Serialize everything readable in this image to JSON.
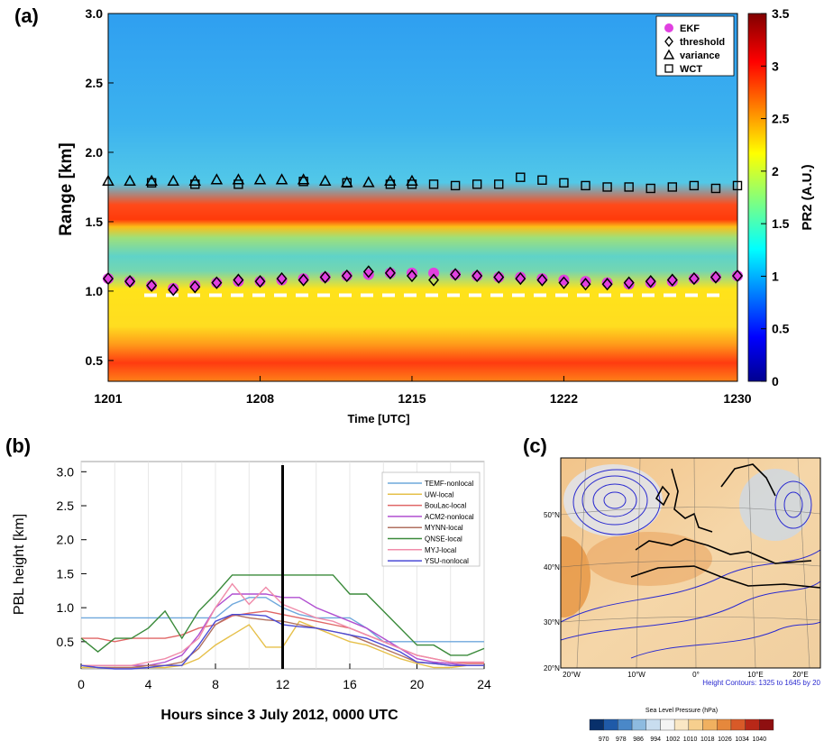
{
  "panel_a": {
    "label": "(a)",
    "colorbar_label": "PR2 (A.U.)",
    "colorbar_ticks": [
      "0",
      "0.5",
      "1",
      "1.5",
      "2",
      "2.5",
      "3",
      "3.5"
    ]
  },
  "panel_b": {
    "label": "(b)"
  },
  "panel_c": {
    "label": "(c)",
    "lat_labels": [
      "50°N",
      "40°N",
      "30°N",
      "20°N"
    ],
    "lon_labels": [
      "20°W",
      "10°W",
      "0°",
      "10°E",
      "20°E"
    ],
    "footer": "Height Contours: 1325 to 1645 by 20",
    "colorbar_title": "Sea Level Pressure  (hPa)",
    "colorbar_ticks": [
      "970",
      "978",
      "986",
      "994",
      "1002",
      "1010",
      "1018",
      "1026",
      "1034",
      "1040"
    ]
  },
  "chart_data": [
    {
      "type": "scatter",
      "title": "",
      "xlabel": "Time [UTC]",
      "ylabel": "Range [km]",
      "x_tick_labels": [
        "1201",
        "1208",
        "1215",
        "1222",
        "1230"
      ],
      "y_tick_labels": [
        "0.5",
        "1.0",
        "1.5",
        "2.0",
        "2.5",
        "3.0"
      ],
      "xlim": [
        1201,
        1230
      ],
      "ylim": [
        0.35,
        3.0
      ],
      "legend_position": "top-right",
      "background": "heatmap of PR2 (A.U.), range 0 to 3.5",
      "series": [
        {
          "name": "EKF",
          "x": [
            1201,
            1202,
            1203,
            1204,
            1205,
            1206,
            1207,
            1208,
            1209,
            1210,
            1211,
            1212,
            1213,
            1214,
            1215,
            1216,
            1217,
            1218,
            1219,
            1220,
            1221,
            1222,
            1223,
            1224,
            1225,
            1226,
            1227,
            1228,
            1229,
            1230
          ],
          "y": [
            1.09,
            1.07,
            1.04,
            1.02,
            1.04,
            1.06,
            1.07,
            1.07,
            1.08,
            1.09,
            1.1,
            1.11,
            1.12,
            1.13,
            1.13,
            1.13,
            1.12,
            1.11,
            1.1,
            1.1,
            1.09,
            1.08,
            1.07,
            1.06,
            1.05,
            1.06,
            1.07,
            1.09,
            1.1,
            1.11
          ]
        },
        {
          "name": "threshold",
          "x": [
            1201,
            1202,
            1203,
            1204,
            1205,
            1206,
            1207,
            1208,
            1209,
            1210,
            1211,
            1212,
            1213,
            1214,
            1215,
            1216,
            1217,
            1218,
            1219,
            1220,
            1221,
            1222,
            1223,
            1224,
            1225,
            1226,
            1227,
            1228,
            1229,
            1230
          ],
          "y": [
            1.09,
            1.07,
            1.04,
            1.01,
            1.03,
            1.06,
            1.08,
            1.07,
            1.09,
            1.08,
            1.1,
            1.11,
            1.14,
            1.13,
            1.11,
            1.08,
            1.12,
            1.11,
            1.1,
            1.09,
            1.08,
            1.06,
            1.05,
            1.05,
            1.06,
            1.07,
            1.08,
            1.09,
            1.1,
            1.11
          ]
        },
        {
          "name": "variance",
          "x": [
            1201,
            1202,
            1203,
            1204,
            1205,
            1206,
            1207,
            1208,
            1209,
            1210,
            1211,
            1212,
            1213,
            1214,
            1215
          ],
          "y": [
            1.79,
            1.79,
            1.79,
            1.79,
            1.79,
            1.8,
            1.8,
            1.8,
            1.8,
            1.8,
            1.79,
            1.78,
            1.78,
            1.79,
            1.79
          ]
        },
        {
          "name": "WCT",
          "x": [
            1203,
            1205,
            1207,
            1210,
            1212,
            1214,
            1215,
            1216,
            1217,
            1218,
            1219,
            1220,
            1221,
            1222,
            1223,
            1224,
            1225,
            1226,
            1227,
            1228,
            1229,
            1230
          ],
          "y": [
            1.78,
            1.77,
            1.77,
            1.79,
            1.78,
            1.77,
            1.77,
            1.77,
            1.76,
            1.77,
            1.77,
            1.82,
            1.8,
            1.78,
            1.76,
            1.75,
            1.75,
            1.74,
            1.75,
            1.76,
            1.74,
            1.76
          ]
        }
      ]
    },
    {
      "type": "line",
      "title": "",
      "xlabel": "Hours since 3 July 2012, 0000 UTC",
      "ylabel": "PBL height [km]",
      "x_tick_labels": [
        "0",
        "4",
        "8",
        "12",
        "16",
        "20",
        "24"
      ],
      "y_tick_labels": [
        "0.5",
        "1.0",
        "1.5",
        "2.0",
        "2.5",
        "3.0"
      ],
      "xlim": [
        0,
        24
      ],
      "ylim": [
        0.1,
        3.15
      ],
      "legend_position": "top-right",
      "vertical_line_x": 12,
      "x": [
        0,
        1,
        2,
        3,
        4,
        5,
        6,
        7,
        8,
        9,
        10,
        11,
        12,
        13,
        14,
        15,
        16,
        17,
        18,
        19,
        20,
        21,
        22,
        23,
        24
      ],
      "series": [
        {
          "name": "TEMF-nonlocal",
          "color": "#6fa8dc",
          "values": [
            0.85,
            0.85,
            0.85,
            0.85,
            0.85,
            0.85,
            0.85,
            0.85,
            0.85,
            1.05,
            1.15,
            1.15,
            1.0,
            0.9,
            0.85,
            0.85,
            0.85,
            0.7,
            0.5,
            0.5,
            0.5,
            0.5,
            0.5,
            0.5,
            0.5
          ]
        },
        {
          "name": "UW-local",
          "color": "#e6c04a",
          "values": [
            0.12,
            0.12,
            0.12,
            0.12,
            0.12,
            0.12,
            0.15,
            0.25,
            0.45,
            0.6,
            0.75,
            0.42,
            0.42,
            0.8,
            0.7,
            0.6,
            0.5,
            0.45,
            0.35,
            0.25,
            0.18,
            0.12,
            0.12,
            0.15,
            0.15
          ]
        },
        {
          "name": "BouLac-local",
          "color": "#e06666",
          "values": [
            0.55,
            0.55,
            0.5,
            0.55,
            0.55,
            0.55,
            0.6,
            0.7,
            0.75,
            0.88,
            0.92,
            0.95,
            0.9,
            0.85,
            0.8,
            0.75,
            0.7,
            0.6,
            0.5,
            0.4,
            0.3,
            0.25,
            0.2,
            0.18,
            0.18
          ]
        },
        {
          "name": "ACM2-nonlocal",
          "color": "#b04fd0",
          "values": [
            0.15,
            0.15,
            0.15,
            0.15,
            0.15,
            0.2,
            0.3,
            0.6,
            1.0,
            1.2,
            1.2,
            1.2,
            1.15,
            1.15,
            1.0,
            0.9,
            0.8,
            0.7,
            0.55,
            0.4,
            0.25,
            0.2,
            0.18,
            0.15,
            0.15
          ]
        },
        {
          "name": "MYNN-local",
          "color": "#b07060",
          "values": [
            0.15,
            0.12,
            0.12,
            0.12,
            0.15,
            0.15,
            0.2,
            0.4,
            0.75,
            0.9,
            0.85,
            0.82,
            0.8,
            0.75,
            0.7,
            0.65,
            0.6,
            0.5,
            0.4,
            0.3,
            0.2,
            0.18,
            0.15,
            0.15,
            0.15
          ]
        },
        {
          "name": "QNSE-local",
          "color": "#3a8a3a",
          "values": [
            0.55,
            0.35,
            0.55,
            0.55,
            0.7,
            0.95,
            0.55,
            0.95,
            1.2,
            1.48,
            1.48,
            1.48,
            1.48,
            1.48,
            1.48,
            1.48,
            1.2,
            1.2,
            0.95,
            0.7,
            0.45,
            0.45,
            0.3,
            0.3,
            0.4
          ]
        },
        {
          "name": "MYJ-local",
          "color": "#f08caa",
          "values": [
            0.15,
            0.15,
            0.15,
            0.15,
            0.2,
            0.25,
            0.35,
            0.55,
            1.0,
            1.35,
            1.05,
            1.3,
            1.05,
            0.95,
            0.85,
            0.8,
            0.7,
            0.6,
            0.5,
            0.4,
            0.3,
            0.25,
            0.2,
            0.2,
            0.2
          ]
        },
        {
          "name": "YSU-nonlocal",
          "color": "#4b4bd6",
          "values": [
            0.15,
            0.12,
            0.1,
            0.1,
            0.12,
            0.15,
            0.15,
            0.45,
            0.8,
            0.9,
            0.9,
            0.88,
            0.75,
            0.72,
            0.7,
            0.65,
            0.6,
            0.55,
            0.45,
            0.35,
            0.2,
            0.18,
            0.15,
            0.15,
            0.15
          ]
        }
      ]
    }
  ]
}
